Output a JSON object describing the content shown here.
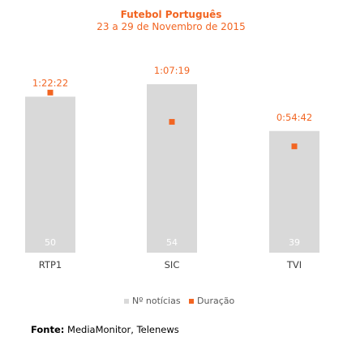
{
  "chart_data": {
    "type": "bar",
    "title": "Futebol Português",
    "subtitle": "23 a 29 de Novembro de 2015",
    "categories": [
      "RTP1",
      "SIC",
      "TVI"
    ],
    "series": [
      {
        "name": "Nº notícias",
        "values": [
          50,
          54,
          39
        ],
        "color": "#d9d9d9"
      },
      {
        "name": "Duração",
        "values": [
          "1:22:22",
          "1:07:19",
          "0:54:42"
        ],
        "values_seconds": [
          4942,
          4039,
          3282
        ],
        "color": "#f26522",
        "marker": "square"
      }
    ],
    "bar_ylim": [
      0,
      54
    ],
    "duration_ylim_seconds": [
      0,
      5200
    ],
    "legend_position": "bottom-center",
    "grid": false
  },
  "source": {
    "label": "Fonte:",
    "text": "MediaMonitor, Telenews"
  }
}
